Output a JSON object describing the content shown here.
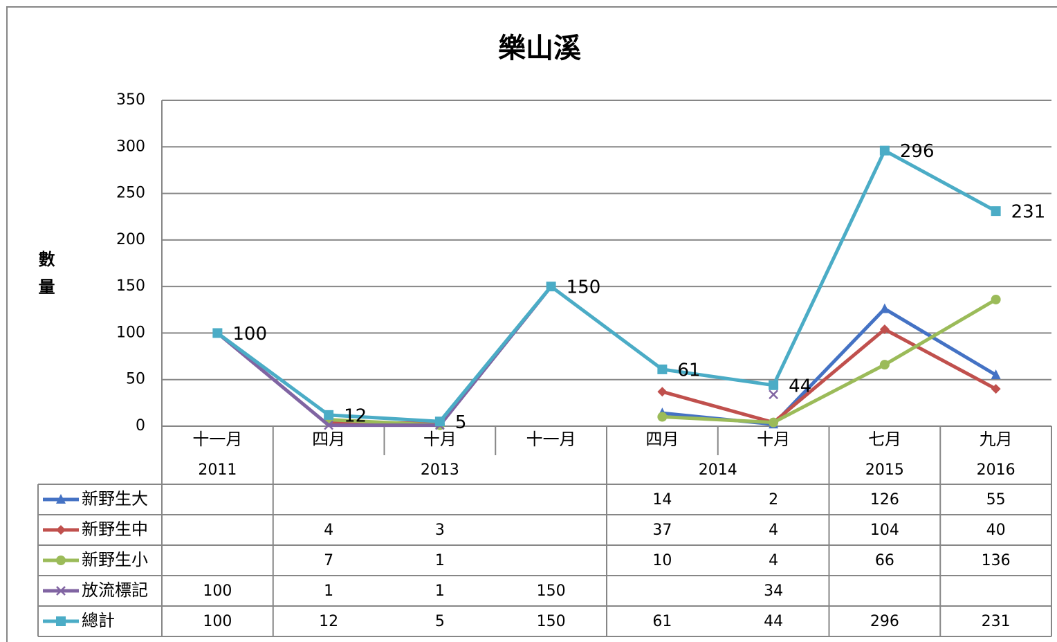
{
  "chart_data": {
    "type": "line",
    "title": "樂山溪",
    "y_label": "數量",
    "categories": [
      "十一月",
      "四月",
      "十月",
      "十一月",
      "四月",
      "十月",
      "七月",
      "九月"
    ],
    "category_groups": [
      "2011",
      "2013",
      "2013",
      "2013",
      "2014",
      "2014",
      "2015",
      "2016"
    ],
    "ylim": [
      0,
      350
    ],
    "yticks": [
      0,
      50,
      100,
      150,
      200,
      250,
      300,
      350
    ],
    "grid": true,
    "data_table": true,
    "series": [
      {
        "name": "新野生大",
        "color": "#4472c4",
        "marker": "triangle",
        "values": [
          null,
          null,
          null,
          null,
          14,
          2,
          126,
          55
        ]
      },
      {
        "name": "新野生中",
        "color": "#c0504d",
        "marker": "diamond",
        "values": [
          null,
          4,
          3,
          null,
          37,
          4,
          104,
          40
        ]
      },
      {
        "name": "新野生小",
        "color": "#9bbb59",
        "marker": "circle",
        "values": [
          null,
          7,
          1,
          null,
          10,
          4,
          66,
          136
        ]
      },
      {
        "name": "放流標記",
        "color": "#8064a2",
        "marker": "x",
        "values": [
          100,
          1,
          1,
          150,
          null,
          34,
          null,
          null
        ]
      },
      {
        "name": "總計",
        "color": "#4bacc6",
        "marker": "square",
        "data_labels": true,
        "values": [
          100,
          12,
          5,
          150,
          61,
          44,
          296,
          231
        ]
      }
    ]
  }
}
